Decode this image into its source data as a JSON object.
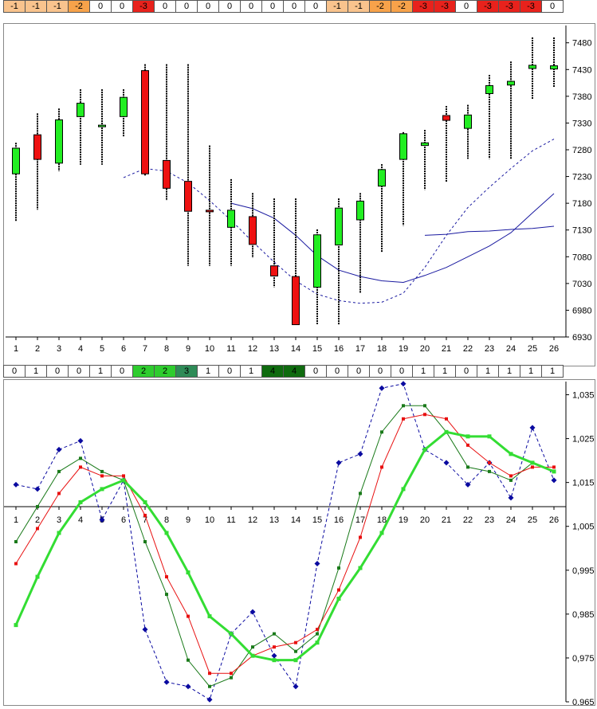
{
  "top_strip": {
    "values": [
      "-1",
      "-1",
      "-1",
      "-2",
      "0",
      "0",
      "-3",
      "0",
      "0",
      "0",
      "0",
      "0",
      "0",
      "0",
      "0",
      "-1",
      "-1",
      "-2",
      "-2",
      "-3",
      "-3",
      "0",
      "-3",
      "-3",
      "-3",
      "0"
    ],
    "colors": {
      "-1": "#f9c38d",
      "-2": "#f7a24a",
      "-3": "#e8221c",
      "0": "#ffffff"
    }
  },
  "mid_strip": {
    "values": [
      "0",
      "1",
      "0",
      "0",
      "1",
      "0",
      "2",
      "2",
      "3",
      "1",
      "0",
      "1",
      "4",
      "4",
      "0",
      "0",
      "0",
      "0",
      "0",
      "1",
      "1",
      "0",
      "1",
      "1",
      "1",
      "1"
    ],
    "colors": {
      "0": "#ffffff",
      "1": "#ffffff",
      "2": "#2ecc2e",
      "3": "#2e8b57",
      "4": "#0f6b0f"
    }
  },
  "chart_data": [
    {
      "type": "candlestick",
      "x": [
        1,
        2,
        3,
        4,
        5,
        6,
        7,
        8,
        9,
        10,
        11,
        12,
        13,
        14,
        15,
        16,
        17,
        18,
        19,
        20,
        21,
        22,
        23,
        24,
        25,
        26
      ],
      "yticks": [
        6930,
        6980,
        7030,
        7080,
        7130,
        7180,
        7230,
        7280,
        7330,
        7380,
        7430,
        7480
      ],
      "ylim": [
        6930,
        7490
      ],
      "candles": [
        {
          "o": 7235,
          "h": 7293,
          "l": 7147,
          "c": 7283
        },
        {
          "o": 7308,
          "h": 7348,
          "l": 7168,
          "c": 7262
        },
        {
          "o": 7255,
          "h": 7357,
          "l": 7240,
          "c": 7336
        },
        {
          "o": 7342,
          "h": 7393,
          "l": 7252,
          "c": 7367
        },
        {
          "o": 7323,
          "h": 7393,
          "l": 7252,
          "c": 7326
        },
        {
          "o": 7342,
          "h": 7393,
          "l": 7305,
          "c": 7378
        },
        {
          "o": 7428,
          "h": 7440,
          "l": 7232,
          "c": 7235
        },
        {
          "o": 7260,
          "h": 7440,
          "l": 7185,
          "c": 7208
        },
        {
          "o": 7221,
          "h": 7440,
          "l": 7063,
          "c": 7165
        },
        {
          "o": 7167,
          "h": 7288,
          "l": 7063,
          "c": 7166
        },
        {
          "o": 7135,
          "h": 7225,
          "l": 7063,
          "c": 7167
        },
        {
          "o": 7155,
          "h": 7199,
          "l": 7078,
          "c": 7103
        },
        {
          "o": 7063,
          "h": 7189,
          "l": 7023,
          "c": 7044
        },
        {
          "o": 7043,
          "h": 7189,
          "l": 6953,
          "c": 6953
        },
        {
          "o": 7023,
          "h": 7131,
          "l": 6953,
          "c": 7121
        },
        {
          "o": 7102,
          "h": 7189,
          "l": 6953,
          "c": 7171
        },
        {
          "o": 7149,
          "h": 7199,
          "l": 7012,
          "c": 7184
        },
        {
          "o": 7212,
          "h": 7253,
          "l": 7088,
          "c": 7243
        },
        {
          "o": 7262,
          "h": 7313,
          "l": 7138,
          "c": 7310
        },
        {
          "o": 7288,
          "h": 7317,
          "l": 7205,
          "c": 7293
        },
        {
          "o": 7344,
          "h": 7362,
          "l": 7219,
          "c": 7335
        },
        {
          "o": 7320,
          "h": 7364,
          "l": 7263,
          "c": 7345
        },
        {
          "o": 7385,
          "h": 7420,
          "l": 7263,
          "c": 7400
        },
        {
          "o": 7401,
          "h": 7445,
          "l": 7263,
          "c": 7408
        },
        {
          "o": 7432,
          "h": 7490,
          "l": 7375,
          "c": 7438
        },
        {
          "o": 7431,
          "h": 7490,
          "l": 7397,
          "c": 7437
        }
      ],
      "series": [
        {
          "style": "dashed",
          "color": "#1a1aa0",
          "values": [
            null,
            null,
            null,
            null,
            null,
            7228,
            7245,
            7240,
            7218,
            7185,
            7148,
            7108,
            7070,
            7035,
            7010,
            6998,
            6993,
            6995,
            7012,
            7060,
            7120,
            7172,
            7210,
            7245,
            7278,
            7300
          ]
        },
        {
          "style": "solid",
          "color": "#1a1aa0",
          "values": [
            null,
            null,
            null,
            null,
            null,
            null,
            null,
            null,
            null,
            null,
            7180,
            7170,
            7152,
            7120,
            7082,
            7055,
            7043,
            7035,
            7032,
            7045,
            7060,
            7080,
            7100,
            7125,
            7162,
            7198
          ]
        },
        {
          "style": "solid",
          "color": "#1a1aa0",
          "values": [
            null,
            null,
            null,
            null,
            null,
            null,
            null,
            null,
            null,
            null,
            null,
            null,
            null,
            null,
            null,
            null,
            null,
            null,
            null,
            7120,
            7122,
            7127,
            7128,
            7131,
            7133,
            7137
          ]
        }
      ]
    },
    {
      "type": "line",
      "x": [
        1,
        2,
        3,
        4,
        5,
        6,
        7,
        8,
        9,
        10,
        11,
        12,
        13,
        14,
        15,
        16,
        17,
        18,
        19,
        20,
        21,
        22,
        23,
        24,
        25,
        26
      ],
      "yticks": [
        "0,965",
        "0,975",
        "0,985",
        "0,995",
        "1,005",
        "1,015",
        "1,025",
        "1,035"
      ],
      "ytick_values": [
        0.965,
        0.975,
        0.985,
        0.995,
        1.005,
        1.015,
        1.025,
        1.035
      ],
      "ylim": [
        0.965,
        1.038
      ],
      "baseline": 1.0095,
      "series": [
        {
          "color": "#0a0aa0",
          "style": "dashed",
          "marker": "diamond",
          "values": [
            1.0145,
            1.0135,
            1.0225,
            1.0245,
            1.0065,
            1.0155,
            0.9815,
            0.9695,
            0.9685,
            0.9655,
            0.9805,
            0.9855,
            0.9755,
            0.9685,
            0.9965,
            1.0195,
            1.0215,
            1.0365,
            1.0375,
            1.0225,
            1.0195,
            1.0145,
            1.0195,
            1.0115,
            1.0275,
            1.0155
          ]
        },
        {
          "color": "#1a7a1a",
          "style": "solid",
          "marker": "square",
          "values": [
            1.0015,
            1.0095,
            1.0175,
            1.0205,
            1.0175,
            1.0155,
            1.0015,
            0.9895,
            0.9745,
            0.9685,
            0.9705,
            0.9775,
            0.9805,
            0.9765,
            0.9805,
            0.9955,
            1.0125,
            1.0265,
            1.0325,
            1.0325,
            1.0265,
            1.0185,
            1.0175,
            1.0155,
            1.0195,
            1.0175
          ]
        },
        {
          "color": "#e81010",
          "style": "solid",
          "marker": "square",
          "values": [
            0.9965,
            1.0045,
            1.0125,
            1.0185,
            1.0165,
            1.0165,
            1.0075,
            0.9935,
            0.9845,
            0.9715,
            0.9715,
            0.9755,
            0.9775,
            0.9785,
            0.9815,
            0.9905,
            1.0025,
            1.0185,
            1.0295,
            1.0305,
            1.0295,
            1.0235,
            1.0195,
            1.0165,
            1.0185,
            1.0185
          ]
        },
        {
          "color": "#33dd33",
          "style": "solid",
          "marker": "square",
          "thick": true,
          "values": [
            0.9825,
            0.9935,
            1.0035,
            1.0105,
            1.0135,
            1.0155,
            1.0105,
            1.0035,
            0.9945,
            0.9845,
            0.9805,
            0.9755,
            0.9745,
            0.9745,
            0.9785,
            0.9885,
            0.9955,
            1.0035,
            1.0135,
            1.0225,
            1.0265,
            1.0255,
            1.0255,
            1.0215,
            1.0195,
            1.0175
          ]
        }
      ]
    }
  ]
}
